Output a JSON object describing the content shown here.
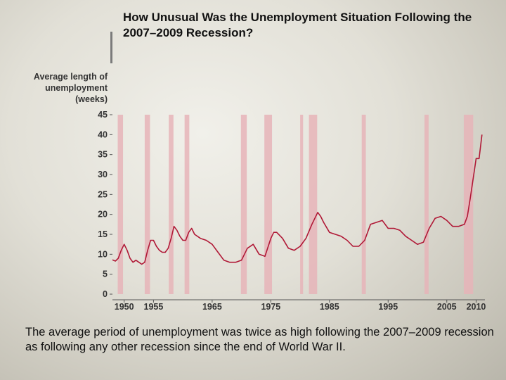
{
  "title": "How Unusual Was the Unemployment Situation Following the 2007–2009 Recession?",
  "caption": "The average period of unemployment was twice as high following the 2007–2009 recession as following any other recession since the end of World War II.",
  "colors": {
    "line": "#b01836",
    "recession": "#e6b4b8",
    "axis": "#555555",
    "text": "#333333"
  },
  "chart_data": {
    "type": "line",
    "title": "How Unusual Was the Unemployment Situation Following the 2007–2009 Recession?",
    "xlabel": "",
    "ylabel": "Average length of unemployment (weeks)",
    "xlim": [
      1948,
      2011.5
    ],
    "ylim": [
      0,
      45
    ],
    "xticks": [
      1950,
      1955,
      1965,
      1975,
      1985,
      1995,
      2005,
      2010
    ],
    "yticks": [
      0,
      5,
      10,
      15,
      20,
      25,
      30,
      35,
      40,
      45
    ],
    "grid": false,
    "recessions": [
      [
        1948.9,
        1949.8
      ],
      [
        1953.5,
        1954.4
      ],
      [
        1957.6,
        1958.4
      ],
      [
        1960.3,
        1961.1
      ],
      [
        1969.9,
        1970.9
      ],
      [
        1973.9,
        1975.2
      ],
      [
        1980.0,
        1980.5
      ],
      [
        1981.5,
        1982.9
      ],
      [
        1990.5,
        1991.2
      ],
      [
        2001.2,
        2001.9
      ],
      [
        2007.9,
        2009.5
      ]
    ],
    "series": [
      {
        "x": [
          1948.0,
          1948.5,
          1949.0,
          1949.5,
          1950.0,
          1950.5,
          1951.0,
          1951.5,
          1952.0,
          1952.5,
          1953.0,
          1953.5,
          1954.0,
          1954.5,
          1955.0,
          1955.5,
          1956.0,
          1956.5,
          1957.0,
          1957.5,
          1958.0,
          1958.5,
          1959.0,
          1959.5,
          1960.0,
          1960.5,
          1961.0,
          1961.5,
          1962.0,
          1963.0,
          1964.0,
          1965.0,
          1966.0,
          1967.0,
          1968.0,
          1969.0,
          1970.0,
          1971.0,
          1972.0,
          1973.0,
          1974.0,
          1975.0,
          1975.5,
          1976.0,
          1977.0,
          1978.0,
          1979.0,
          1980.0,
          1981.0,
          1982.0,
          1983.0,
          1983.5,
          1984.0,
          1985.0,
          1986.0,
          1987.0,
          1988.0,
          1989.0,
          1990.0,
          1991.0,
          1992.0,
          1993.0,
          1994.0,
          1995.0,
          1996.0,
          1997.0,
          1998.0,
          1999.0,
          2000.0,
          2001.0,
          2002.0,
          2003.0,
          2004.0,
          2005.0,
          2006.0,
          2007.0,
          2008.0,
          2008.5,
          2009.0,
          2009.5,
          2010.0,
          2010.5,
          2011.0
        ],
        "values": [
          8.6,
          8.3,
          9.0,
          11.0,
          12.5,
          11.0,
          9.0,
          8.0,
          8.5,
          8.0,
          7.5,
          8.0,
          11.0,
          13.5,
          13.5,
          12.0,
          11.0,
          10.5,
          10.5,
          11.5,
          14.0,
          17.0,
          16.0,
          14.5,
          13.5,
          13.5,
          15.5,
          16.5,
          15.0,
          14.0,
          13.5,
          12.5,
          10.5,
          8.5,
          8.0,
          8.0,
          8.5,
          11.5,
          12.5,
          10.0,
          9.5,
          14.0,
          15.5,
          15.5,
          14.0,
          11.5,
          11.0,
          12.0,
          14.0,
          17.5,
          20.5,
          19.5,
          18.0,
          15.5,
          15.0,
          14.5,
          13.5,
          12.0,
          12.0,
          13.5,
          17.5,
          18.0,
          18.5,
          16.5,
          16.5,
          16.0,
          14.5,
          13.5,
          12.5,
          13.0,
          16.5,
          19.0,
          19.5,
          18.5,
          17.0,
          17.0,
          17.5,
          19.5,
          24.0,
          29.0,
          34.0,
          34.0,
          40.0
        ]
      }
    ]
  }
}
